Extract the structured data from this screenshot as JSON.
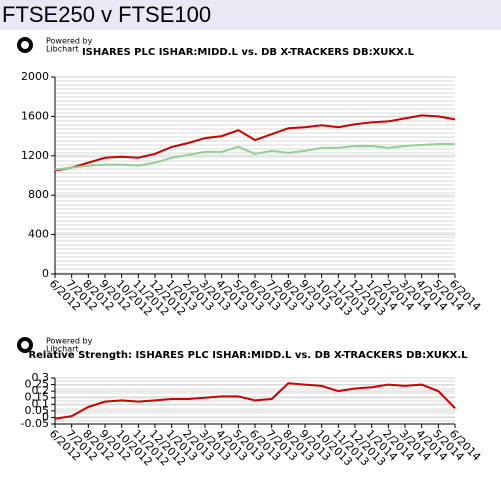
{
  "header": {
    "title": "FTSE250 v FTSE100"
  },
  "chart_data": [
    {
      "type": "line",
      "title": "ISHARES PLC ISHAR:MIDD.L  vs. DB X-TRACKERS DB:XUKX.L",
      "credit": [
        "Powered by",
        "Libchart"
      ],
      "categories": [
        "6/2012",
        "7/2012",
        "8/2012",
        "9/2012",
        "10/2012",
        "11/2012",
        "12/2012",
        "1/2013",
        "2/2013",
        "3/2013",
        "4/2013",
        "5/2013",
        "6/2013",
        "7/2013",
        "8/2013",
        "9/2013",
        "10/2013",
        "11/2013",
        "12/2013",
        "1/2014",
        "2/2014",
        "3/2014",
        "4/2014",
        "5/2014",
        "6/2014"
      ],
      "series": [
        {
          "name": "ISHARES PLC ISHAR:MIDD.L",
          "color": "#cc0000",
          "values": [
            1050,
            1080,
            1130,
            1180,
            1190,
            1180,
            1220,
            1290,
            1330,
            1380,
            1400,
            1460,
            1360,
            1420,
            1480,
            1490,
            1510,
            1490,
            1520,
            1540,
            1550,
            1580,
            1610,
            1600,
            1570
          ]
        },
        {
          "name": "DB X-TRACKERS DB:XUKX.L",
          "color": "#90d090",
          "values": [
            1060,
            1080,
            1100,
            1110,
            1110,
            1100,
            1130,
            1180,
            1210,
            1240,
            1240,
            1290,
            1220,
            1250,
            1230,
            1250,
            1280,
            1280,
            1300,
            1300,
            1280,
            1300,
            1310,
            1320,
            1320
          ]
        }
      ],
      "ylim": [
        0,
        2000
      ],
      "yticks": [
        0,
        400,
        800,
        1200,
        1600,
        2000
      ],
      "grid": true
    },
    {
      "type": "line",
      "title": "Relative Strength: ISHARES PLC ISHAR:MIDD.L  vs. DB X-TRACKERS DB:XUKX.L",
      "credit": [
        "Powered by",
        "Libchart"
      ],
      "categories": [
        "6/2012",
        "7/2012",
        "8/2012",
        "9/2012",
        "10/2012",
        "11/2012",
        "12/2012",
        "1/2013",
        "2/2013",
        "3/2013",
        "4/2013",
        "5/2013",
        "6/2013",
        "7/2013",
        "8/2013",
        "9/2013",
        "10/2013",
        "11/2013",
        "12/2013",
        "1/2014",
        "2/2014",
        "3/2014",
        "4/2014",
        "5/2014",
        "6/2014"
      ],
      "series": [
        {
          "name": "Relative Strength",
          "color": "#cc0000",
          "values": [
            -0.01,
            0.01,
            0.08,
            0.12,
            0.13,
            0.12,
            0.13,
            0.14,
            0.14,
            0.15,
            0.16,
            0.16,
            0.13,
            0.14,
            0.26,
            0.25,
            0.24,
            0.2,
            0.22,
            0.23,
            0.25,
            0.24,
            0.25,
            0.2,
            0.07
          ]
        }
      ],
      "ylim": [
        -0.05,
        0.3
      ],
      "yticks": [
        -0.05,
        0,
        0.05,
        0.1,
        0.15,
        0.2,
        0.25,
        0.3
      ],
      "grid": true
    }
  ]
}
